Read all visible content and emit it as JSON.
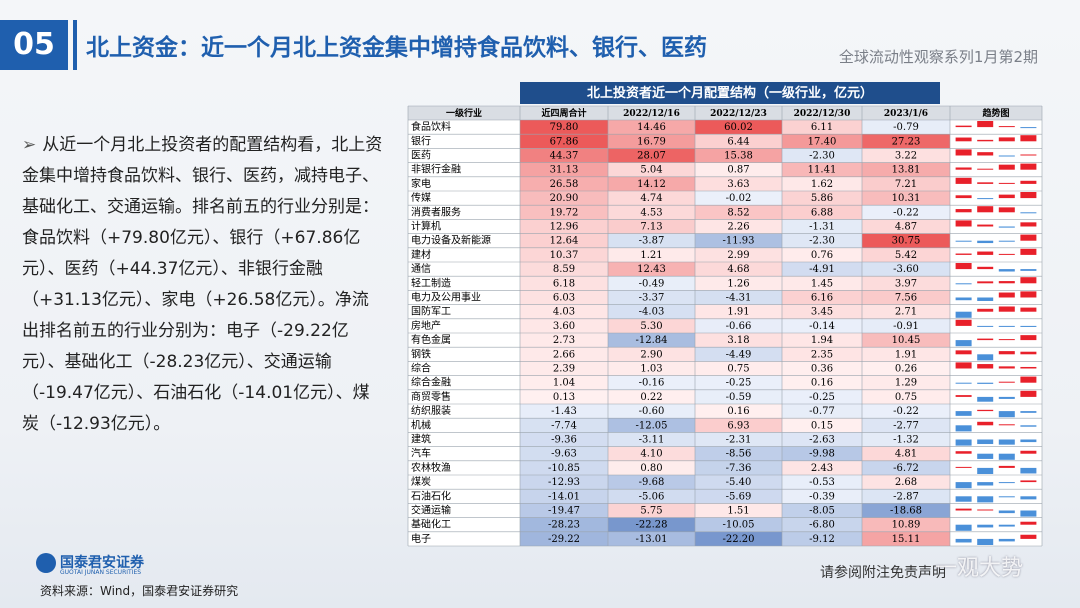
{
  "header": {
    "number": "05",
    "title": "北上资金：近一个月北上资金集中增持食品饮料、银行、医药",
    "series": "全球流动性观察系列1月第2期"
  },
  "bullet": "从近一个月北上投资者的配置结构看，北上资金集中增持食品饮料、银行、医药，减持电子、基础化工、交通运输。排名前五的行业分别是：食品饮料（+79.80亿元）、银行（+67.86亿元）、医药（+44.37亿元）、非银行金融（+31.13亿元）、家电（+26.58亿元）。净流出排名前五的行业分别为：电子（-29.22亿元）、基础化工（-28.23亿元）、交通运输（-19.47亿元）、石油石化（-14.01亿元）、煤炭（-12.93亿元）。",
  "table": {
    "title": "北上投资者近一个月配置结构（一级行业，亿元）",
    "columns": [
      "一级行业",
      "近四周合计",
      "2022/12/16",
      "2022/12/23",
      "2022/12/30",
      "2023/1/6",
      "趋势图"
    ],
    "rows": [
      [
        "食品饮料",
        "79.80",
        "14.46",
        "60.02",
        "6.11",
        "-0.79"
      ],
      [
        "银行",
        "67.86",
        "16.79",
        "6.44",
        "17.40",
        "27.23"
      ],
      [
        "医药",
        "44.37",
        "28.07",
        "15.38",
        "-2.30",
        "3.22"
      ],
      [
        "非银行金融",
        "31.13",
        "5.04",
        "0.87",
        "11.41",
        "13.81"
      ],
      [
        "家电",
        "26.58",
        "14.12",
        "3.63",
        "1.62",
        "7.21"
      ],
      [
        "传媒",
        "20.90",
        "4.74",
        "-0.02",
        "5.86",
        "10.31"
      ],
      [
        "消费者服务",
        "19.72",
        "4.53",
        "8.52",
        "6.88",
        "-0.22"
      ],
      [
        "计算机",
        "12.96",
        "7.13",
        "2.26",
        "-1.31",
        "4.87"
      ],
      [
        "电力设备及新能源",
        "12.64",
        "-3.87",
        "-11.93",
        "-2.30",
        "30.75"
      ],
      [
        "建材",
        "10.37",
        "1.21",
        "2.99",
        "0.76",
        "5.42"
      ],
      [
        "通信",
        "8.59",
        "12.43",
        "4.68",
        "-4.91",
        "-3.60"
      ],
      [
        "轻工制造",
        "6.18",
        "-0.49",
        "1.26",
        "1.45",
        "3.97"
      ],
      [
        "电力及公用事业",
        "6.03",
        "-3.37",
        "-4.31",
        "6.16",
        "7.56"
      ],
      [
        "国防军工",
        "4.03",
        "-4.03",
        "1.91",
        "3.45",
        "2.71"
      ],
      [
        "房地产",
        "3.60",
        "5.30",
        "-0.66",
        "-0.14",
        "-0.91"
      ],
      [
        "有色金属",
        "2.73",
        "-12.84",
        "3.18",
        "1.94",
        "10.45"
      ],
      [
        "钢铁",
        "2.66",
        "2.90",
        "-4.49",
        "2.35",
        "1.91"
      ],
      [
        "综合",
        "2.39",
        "1.03",
        "0.75",
        "0.36",
        "0.26"
      ],
      [
        "综合金融",
        "1.04",
        "-0.16",
        "-0.25",
        "0.16",
        "1.29"
      ],
      [
        "商贸零售",
        "0.13",
        "0.22",
        "-0.59",
        "-0.25",
        "0.75"
      ],
      [
        "纺织服装",
        "-1.43",
        "-0.60",
        "0.16",
        "-0.77",
        "-0.22"
      ],
      [
        "机械",
        "-7.74",
        "-12.05",
        "6.93",
        "0.15",
        "-2.77"
      ],
      [
        "建筑",
        "-9.36",
        "-3.11",
        "-2.31",
        "-2.63",
        "-1.32"
      ],
      [
        "汽车",
        "-9.63",
        "4.10",
        "-8.56",
        "-9.98",
        "4.81"
      ],
      [
        "农林牧渔",
        "-10.85",
        "0.80",
        "-7.36",
        "2.43",
        "-6.72"
      ],
      [
        "煤炭",
        "-12.93",
        "-9.68",
        "-5.40",
        "-0.53",
        "2.68"
      ],
      [
        "石油石化",
        "-14.01",
        "-5.06",
        "-5.69",
        "-0.39",
        "-2.87"
      ],
      [
        "交通运输",
        "-19.47",
        "5.75",
        "1.51",
        "-8.05",
        "-18.68"
      ],
      [
        "基础化工",
        "-28.23",
        "-22.28",
        "-10.05",
        "-6.80",
        "10.89"
      ],
      [
        "电子",
        "-29.22",
        "-13.01",
        "-22.20",
        "-9.12",
        "15.11"
      ]
    ]
  },
  "footer": {
    "logo": "国泰君安证券",
    "logo_en": "GUOTAI JUNAN SECURITIES",
    "source": "资料来源：Wind，国泰君安证券研究",
    "disclaimer": "请参阅附注免责声明",
    "watermark": "一观大势"
  }
}
